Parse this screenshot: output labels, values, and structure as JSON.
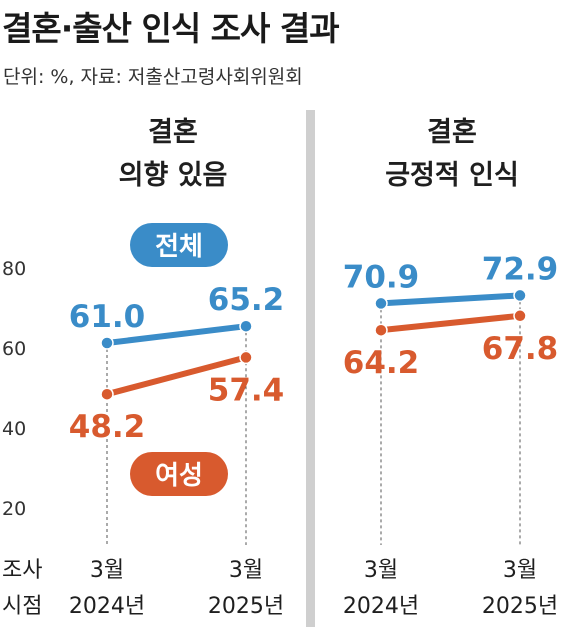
{
  "title": "결혼·출산 인식 조사 결과",
  "unit_note": "단위: %, 자료: 저출산고령사회위원회",
  "colors": {
    "total": "#3a8cc8",
    "female": "#d85a2e",
    "divider": "#cfcfcf"
  },
  "legend": {
    "total": "전체",
    "female": "여성"
  },
  "y_axis": {
    "ticks": [
      "80",
      "60",
      "40",
      "20"
    ]
  },
  "x_axis": {
    "label_line1": "조사",
    "label_line2": "시점"
  },
  "chart_data": [
    {
      "type": "line",
      "title_line1": "결혼",
      "title_line2": "의향 있음",
      "categories": [
        {
          "line1": "3월",
          "line2": "2024년"
        },
        {
          "line1": "3월",
          "line2": "2025년"
        }
      ],
      "series": [
        {
          "name": "전체",
          "values": [
            61.0,
            65.2
          ],
          "labels": [
            "61.0",
            "65.2"
          ]
        },
        {
          "name": "여성",
          "values": [
            48.2,
            57.4
          ],
          "labels": [
            "48.2",
            "57.4"
          ]
        }
      ],
      "ylim": [
        20,
        80
      ]
    },
    {
      "type": "line",
      "title_line1": "결혼",
      "title_line2": "긍정적 인식",
      "categories": [
        {
          "line1": "3월",
          "line2": "2024년"
        },
        {
          "line1": "3월",
          "line2": "2025년"
        }
      ],
      "series": [
        {
          "name": "전체",
          "values": [
            70.9,
            72.9
          ],
          "labels": [
            "70.9",
            "72.9"
          ]
        },
        {
          "name": "여성",
          "values": [
            64.2,
            67.8
          ],
          "labels": [
            "64.2",
            "67.8"
          ]
        }
      ],
      "ylim": [
        20,
        80
      ]
    }
  ]
}
